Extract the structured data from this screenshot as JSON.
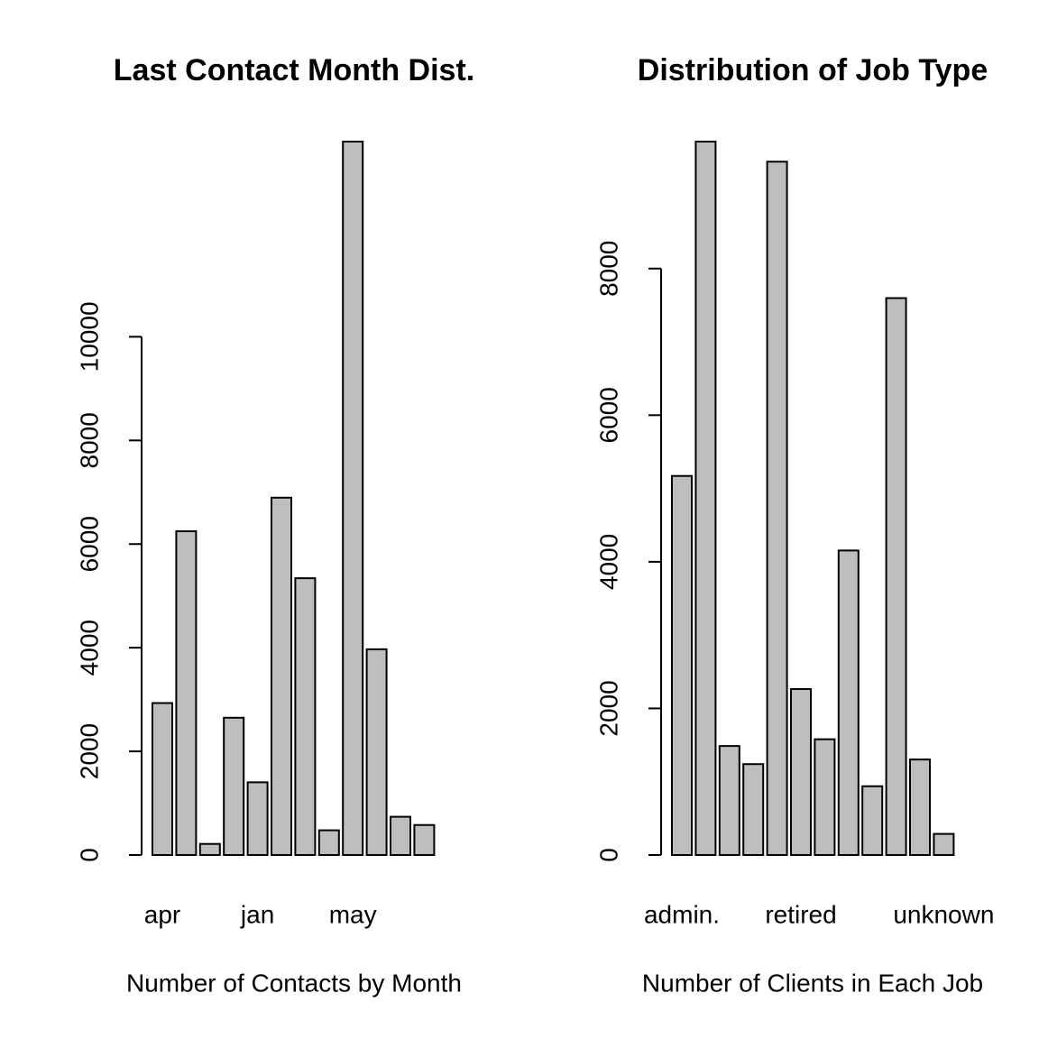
{
  "chart_data": [
    {
      "type": "bar",
      "title": "Last Contact Month Dist.",
      "xlabel": "Number of Contacts by Month",
      "categories": [
        "apr",
        null,
        null,
        null,
        "jan",
        null,
        null,
        null,
        "may",
        null,
        null,
        null
      ],
      "values": [
        2932,
        6247,
        214,
        2649,
        1403,
        6895,
        5341,
        477,
        13766,
        3970,
        738,
        579
      ],
      "color": "#bebebe",
      "ylim": [
        0,
        13766
      ],
      "yticks": [
        0,
        2000,
        4000,
        6000,
        8000,
        10000
      ]
    },
    {
      "type": "bar",
      "title": "Distribution of Job Type",
      "xlabel": "Number of Clients in Each Job",
      "categories": [
        "admin.",
        null,
        null,
        null,
        null,
        "retired",
        null,
        null,
        null,
        null,
        null,
        "unknown"
      ],
      "values": [
        5171,
        9732,
        1487,
        1240,
        9458,
        2264,
        1579,
        4154,
        938,
        7597,
        1303,
        288
      ],
      "color": "#bebebe",
      "ylim": [
        0,
        9732
      ],
      "yticks": [
        0,
        2000,
        4000,
        6000,
        8000
      ]
    }
  ]
}
